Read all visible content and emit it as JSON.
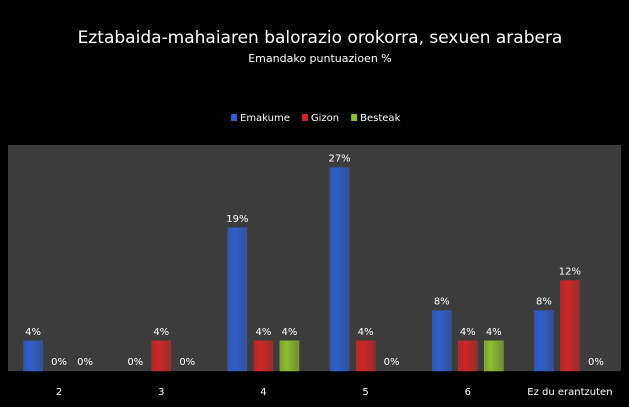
{
  "chart_data": {
    "type": "bar",
    "title": "Eztabaida-mahaiaren balorazio orokorra, sexuen arabera",
    "subtitle": "Emandako puntuazioen %",
    "categories": [
      "2",
      "3",
      "4",
      "5",
      "6",
      "Ez du erantzuten"
    ],
    "series": [
      {
        "name": "Emakume",
        "color": "#2f5fcf",
        "values": [
          4,
          0,
          19,
          27,
          8,
          8
        ],
        "value_labels": [
          "4%",
          "0%",
          "19%",
          "27%",
          "8%",
          "8%"
        ]
      },
      {
        "name": "Gizon",
        "color": "#cf2525",
        "values": [
          0,
          4,
          4,
          4,
          4,
          12
        ],
        "value_labels": [
          "0%",
          "4%",
          "4%",
          "4%",
          "4%",
          "12%"
        ]
      },
      {
        "name": "Besteak",
        "color": "#8fbf2f",
        "values": [
          0,
          0,
          4,
          0,
          4,
          0
        ],
        "value_labels": [
          "0%",
          "0%",
          "4%",
          "0%",
          "4%",
          "0%"
        ]
      }
    ],
    "ylim": [
      0,
      30
    ],
    "legend": "top"
  }
}
